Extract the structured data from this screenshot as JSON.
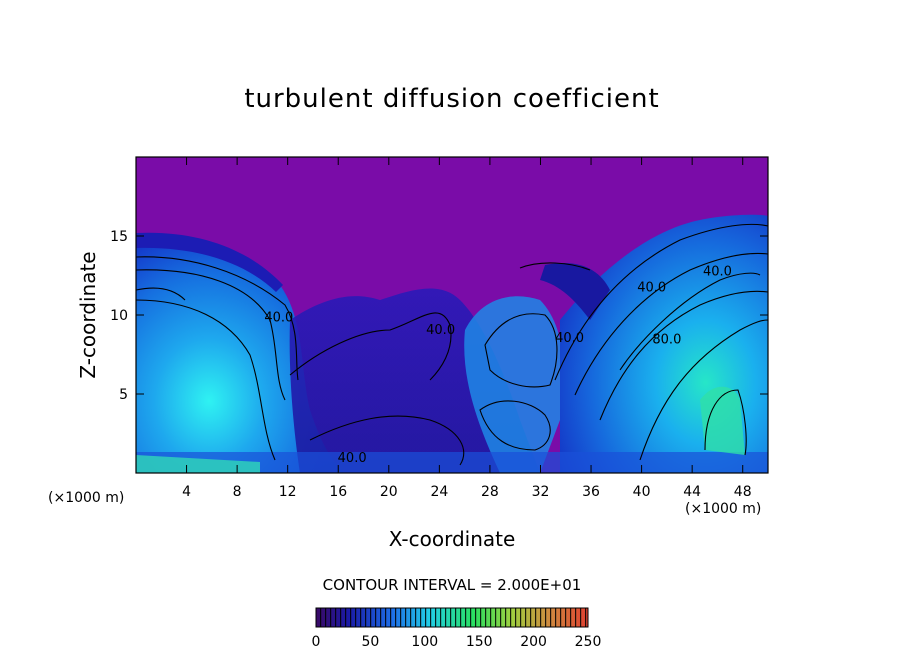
{
  "chart_data": {
    "type": "heatmap",
    "title": "turbulent diffusion coefficient",
    "xlabel": "X-coordinate",
    "ylabel": "Z-coordinate",
    "x_unit": "(×1000 m)",
    "xlim": [
      0,
      50
    ],
    "ylim": [
      0,
      20
    ],
    "x_ticks": [
      4,
      8,
      12,
      16,
      20,
      24,
      28,
      32,
      36,
      40,
      44,
      48
    ],
    "y_ticks": [
      5,
      10,
      15
    ],
    "contour_interval_text": "CONTOUR INTERVAL = 2.000E+01",
    "colorbar": {
      "min": 0,
      "max": 250,
      "ticks": [
        "0",
        "50",
        "100",
        "150",
        "200",
        "250"
      ]
    },
    "contour_labels": [
      {
        "text": "40.0",
        "x": 11.3,
        "z": 9.6
      },
      {
        "text": "40.0",
        "x": 24.1,
        "z": 8.8
      },
      {
        "text": "40.0",
        "x": 17.1,
        "z": 0.7
      },
      {
        "text": "40.0",
        "x": 34.3,
        "z": 8.3
      },
      {
        "text": "40.0",
        "x": 40.8,
        "z": 11.5
      },
      {
        "text": "40.0",
        "x": 46.0,
        "z": 12.5
      },
      {
        "text": "80.0",
        "x": 42.0,
        "z": 8.2
      }
    ]
  }
}
